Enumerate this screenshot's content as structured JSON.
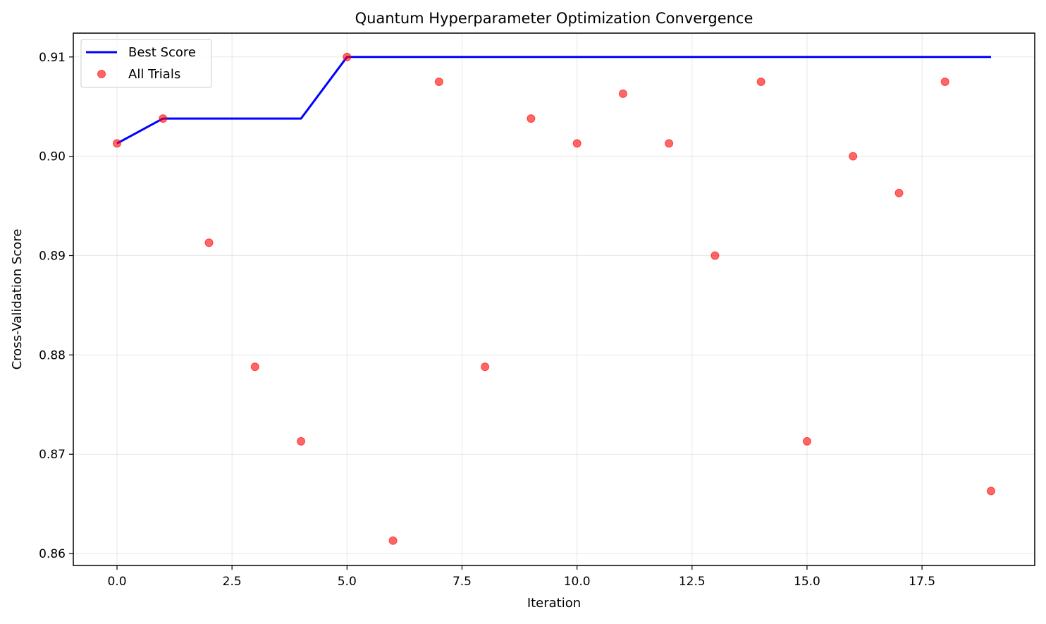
{
  "chart_data": {
    "type": "line",
    "title": "Quantum Hyperparameter Optimization Convergence",
    "xlabel": "Iteration",
    "ylabel": "Cross-Validation Score",
    "xlim": [
      -0.95,
      19.95
    ],
    "ylim": [
      0.8588,
      0.9124
    ],
    "xticks": [
      0.0,
      2.5,
      5.0,
      7.5,
      10.0,
      12.5,
      15.0,
      17.5
    ],
    "xtick_labels": [
      "0.0",
      "2.5",
      "5.0",
      "7.5",
      "10.0",
      "12.5",
      "15.0",
      "17.5"
    ],
    "yticks": [
      0.86,
      0.87,
      0.88,
      0.89,
      0.9,
      0.91
    ],
    "ytick_labels": [
      "0.86",
      "0.87",
      "0.88",
      "0.89",
      "0.90",
      "0.91"
    ],
    "grid": true,
    "legend_position": "top-left",
    "series": [
      {
        "name": "Best Score",
        "kind": "line",
        "color": "#0000ff",
        "x": [
          0,
          1,
          2,
          3,
          4,
          5,
          6,
          7,
          8,
          9,
          10,
          11,
          12,
          13,
          14,
          15,
          16,
          17,
          18,
          19
        ],
        "y": [
          0.9013,
          0.9038,
          0.9038,
          0.9038,
          0.9038,
          0.91,
          0.91,
          0.91,
          0.91,
          0.91,
          0.91,
          0.91,
          0.91,
          0.91,
          0.91,
          0.91,
          0.91,
          0.91,
          0.91,
          0.91
        ]
      },
      {
        "name": "All Trials",
        "kind": "scatter",
        "color": "#ff0000",
        "x": [
          0,
          1,
          2,
          3,
          4,
          5,
          6,
          7,
          8,
          9,
          10,
          11,
          12,
          13,
          14,
          15,
          16,
          17,
          18,
          19
        ],
        "y": [
          0.9013,
          0.9038,
          0.8913,
          0.8788,
          0.8713,
          0.91,
          0.8613,
          0.9075,
          0.8788,
          0.9038,
          0.9013,
          0.9063,
          0.9013,
          0.89,
          0.9075,
          0.8713,
          0.9,
          0.8963,
          0.9075,
          0.8663
        ]
      }
    ]
  }
}
